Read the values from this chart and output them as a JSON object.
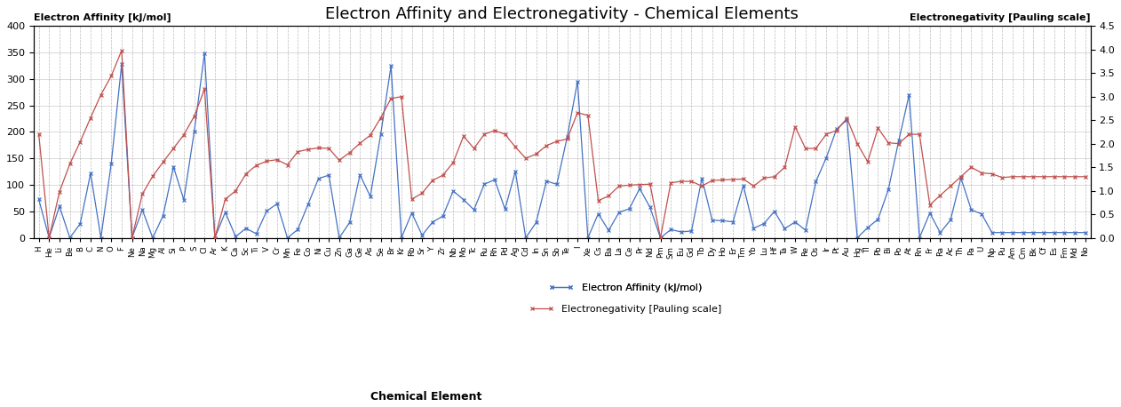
{
  "title": "Electron Affinity and Electronegativity - Chemical Elements",
  "xlabel": "Chemical Element",
  "ylabel_left": "Electron Affinity [kJ/mol]",
  "ylabel_right": "Electronegativity [Pauling scale]",
  "legend_ea": "Electron Affinity (kJ/mol)",
  "legend_en": "Electronegativity [Pauling scale]",
  "ylim_left": [
    0,
    400
  ],
  "ylim_right": [
    0,
    4.5
  ],
  "color_ea": "#4472C4",
  "color_en": "#C0504D",
  "elements": [
    "H",
    "He",
    "Li",
    "Be",
    "B",
    "C",
    "N",
    "O",
    "F",
    "Ne",
    "Na",
    "Mg",
    "Al",
    "Si",
    "P",
    "S",
    "Cl",
    "Ar",
    "K",
    "Ca",
    "Sc",
    "Ti",
    "V",
    "Cr",
    "Mn",
    "Fe",
    "Co",
    "Ni",
    "Cu",
    "Zn",
    "Ga",
    "Ge",
    "As",
    "Se",
    "Br",
    "Kr",
    "Rb",
    "Sr",
    "Y",
    "Zr",
    "Nb",
    "Mo",
    "Tc",
    "Ru",
    "Rh",
    "Pd",
    "Ag",
    "Cd",
    "In",
    "Sn",
    "Sb",
    "Te",
    "I",
    "Xe",
    "Cs",
    "Ba",
    "La",
    "Ce",
    "Pr",
    "Nd",
    "Pm",
    "Sm",
    "Eu",
    "Gd",
    "Tb",
    "Dy",
    "Ho",
    "Er",
    "Tm",
    "Yb",
    "Lu",
    "Hf",
    "Ta",
    "W",
    "Re",
    "Os",
    "Ir",
    "Pt",
    "Au",
    "Hg",
    "Tl",
    "Pb",
    "Bi",
    "Po",
    "At",
    "Rn",
    "Fr",
    "Ra",
    "Ac",
    "Th",
    "Pa",
    "U",
    "Np",
    "Pu",
    "Am",
    "Cm",
    "Bk",
    "Cf",
    "Es",
    "Fm",
    "Md",
    "No"
  ],
  "electron_affinity": [
    72.8,
    0,
    59.6,
    0,
    26.7,
    121.8,
    0,
    141.0,
    328.0,
    0,
    52.8,
    0,
    41.8,
    134.1,
    72.0,
    200.0,
    349.0,
    0,
    48.4,
    2.37,
    18.0,
    7.6,
    50.6,
    64.3,
    0,
    15.7,
    63.7,
    112.0,
    118.4,
    0,
    28.9,
    119.0,
    78.2,
    195.0,
    324.6,
    0,
    46.9,
    5.03,
    29.6,
    41.1,
    88.5,
    72.1,
    53.0,
    101.3,
    109.7,
    54.2,
    125.6,
    0,
    28.9,
    107.3,
    101.1,
    190.2,
    295.2,
    0,
    45.5,
    13.95,
    48.0,
    55.0,
    93.0,
    57.4,
    0,
    15.6,
    11.2,
    13.0,
    112.4,
    33.0,
    32.6,
    30.1,
    99.0,
    18.1,
    27.0,
    50.0,
    17.4,
    30.0,
    14.5,
    106.1,
    151.0,
    205.3,
    222.8,
    0,
    19.2,
    35.1,
    91.2,
    183.3,
    270.1,
    0,
    46.9,
    9.65,
    33.8,
    113.0,
    53.0,
    45.0,
    10.0,
    10.0,
    10.0,
    10.0,
    10.0,
    10.0,
    10.0,
    10.0,
    10.0,
    10.0
  ],
  "electronegativity": [
    2.2,
    0,
    0.98,
    1.57,
    2.04,
    2.55,
    3.04,
    3.44,
    3.98,
    0,
    0.93,
    1.31,
    1.61,
    1.9,
    2.19,
    2.58,
    3.16,
    0,
    0.82,
    1.0,
    1.36,
    1.54,
    1.63,
    1.66,
    1.55,
    1.83,
    1.88,
    1.91,
    1.9,
    1.65,
    1.81,
    2.01,
    2.18,
    2.55,
    2.96,
    3.0,
    0.82,
    0.95,
    1.22,
    1.33,
    1.6,
    2.16,
    1.9,
    2.2,
    2.28,
    2.2,
    1.93,
    1.69,
    1.78,
    1.96,
    2.05,
    2.1,
    2.66,
    2.6,
    0.79,
    0.89,
    1.1,
    1.12,
    1.13,
    1.14,
    0,
    1.17,
    1.2,
    1.2,
    1.1,
    1.22,
    1.23,
    1.24,
    1.25,
    1.1,
    1.27,
    1.3,
    1.5,
    2.36,
    1.9,
    1.9,
    2.2,
    2.28,
    2.54,
    2.0,
    1.62,
    2.33,
    2.02,
    2.0,
    2.2,
    2.2,
    0.7,
    0.9,
    1.1,
    1.3,
    1.5,
    1.38,
    1.36,
    1.28,
    1.3,
    1.3,
    1.3,
    1.3,
    1.3,
    1.3,
    1.3,
    1.3
  ],
  "yticks_left": [
    0,
    50,
    100,
    150,
    200,
    250,
    300,
    350,
    400
  ],
  "yticks_right": [
    0,
    0.5,
    1.0,
    1.5,
    2.0,
    2.5,
    3.0,
    3.5,
    4.0,
    4.5
  ],
  "bg_color": "#ffffff",
  "grid_color": "#aaaaaa",
  "title_fontsize": 13,
  "tick_fontsize": 8,
  "label_fontsize": 8
}
